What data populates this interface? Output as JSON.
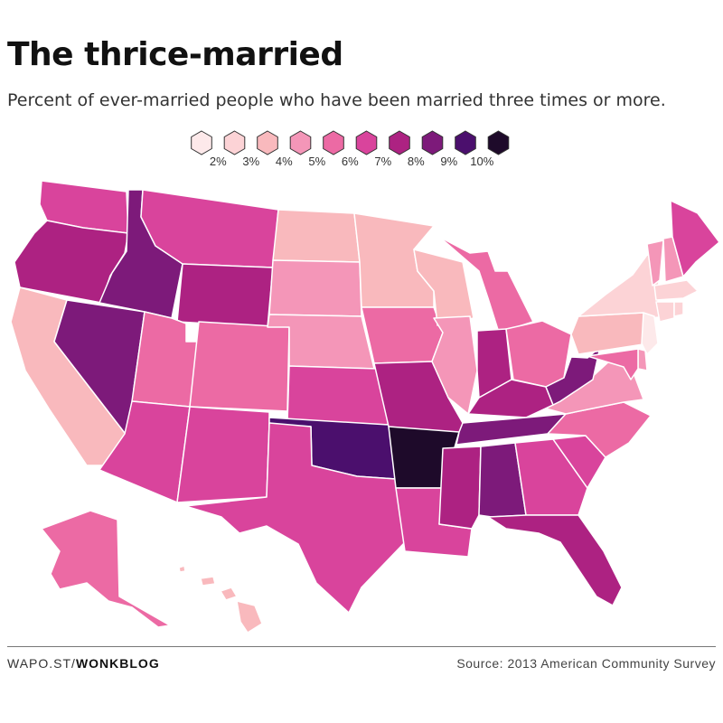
{
  "title": "The thrice-married",
  "subtitle": "Percent of ever-married people who have been married three times or more.",
  "legend": {
    "labels": [
      "2%",
      "3%",
      "4%",
      "5%",
      "6%",
      "7%",
      "8%",
      "9%",
      "10%"
    ],
    "colors": [
      "#fde9ea",
      "#fcd3d6",
      "#f9b9bd",
      "#f496b8",
      "#ec6aa4",
      "#d9449c",
      "#ad2282",
      "#7d1a7a",
      "#4b0f6d",
      "#1e0a2a"
    ]
  },
  "footer": {
    "source_prefix": "WAPO.ST/",
    "source_brand": "WONKBLOG",
    "credit": "Source: 2013 American Community Survey"
  },
  "map_data": {
    "WA": 7,
    "OR": 8,
    "CA": 4,
    "NV": 9,
    "ID": 9,
    "MT": 7,
    "WY": 8,
    "UT": 6,
    "AZ": 7,
    "CO": 6,
    "NM": 7,
    "ND": 4,
    "SD": 5,
    "NE": 5,
    "KS": 7,
    "OK": 10,
    "TX": 7,
    "MN": 4,
    "IA": 6,
    "MO": 8,
    "AR": 11,
    "LA": 7,
    "WI": 4,
    "IL": 5,
    "MI": 6,
    "IN": 8,
    "OH": 6,
    "KY": 8,
    "TN": 9,
    "MS": 8,
    "AL": 9,
    "GA": 7,
    "FL": 8,
    "SC": 7,
    "NC": 6,
    "VA": 5,
    "WV": 9,
    "PA": 4,
    "NY": 3,
    "ME": 7,
    "VT": 5,
    "NH": 5,
    "MA": 3,
    "CT": 3,
    "RI": 3,
    "NJ": 2,
    "DE": 5,
    "MD": 6,
    "AK": 6,
    "HI": 4
  }
}
